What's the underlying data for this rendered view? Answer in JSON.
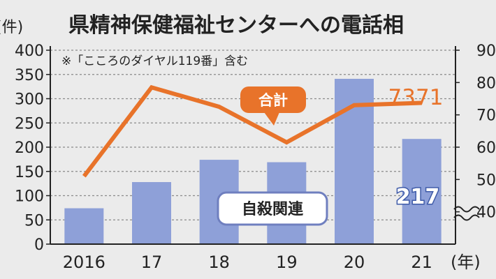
{
  "title": "県精神保健福祉センターへの電話相",
  "note": "※「こころのダイヤル119番」含む",
  "colors": {
    "bar": "#8ea0d8",
    "line": "#e8732a",
    "grid": "#8a8a8a",
    "background": "#ebebeb"
  },
  "chart_data": {
    "type": "bar",
    "categories": [
      "2016",
      "17",
      "18",
      "19",
      "20",
      "21"
    ],
    "x_unit": "(年)",
    "series": [
      {
        "name": "自殺関連",
        "type": "bar",
        "axis": "left",
        "values": [
          74,
          128,
          174,
          169,
          341,
          217
        ],
        "data_labels": {
          "5": "217"
        }
      },
      {
        "name": "合計",
        "type": "line",
        "axis": "right",
        "values": [
          5100,
          7850,
          7250,
          6150,
          7300,
          7371
        ],
        "data_labels": {
          "5": "7371"
        }
      }
    ],
    "left_axis": {
      "unit": "(件)",
      "min": 0,
      "max": 400,
      "ticks": [
        0,
        50,
        100,
        150,
        200,
        250,
        300,
        350,
        400
      ],
      "tick_labels": [
        "0",
        "50",
        "100",
        "150",
        "200",
        "250",
        "300",
        "350",
        "400"
      ]
    },
    "right_axis": {
      "min": 3000,
      "max": 9000,
      "ticks": [
        4000,
        5000,
        6000,
        7000,
        8000,
        9000
      ],
      "tick_labels": [
        "40",
        "50",
        "60",
        "70",
        "80",
        "90"
      ],
      "broken": true
    },
    "grid": true
  }
}
